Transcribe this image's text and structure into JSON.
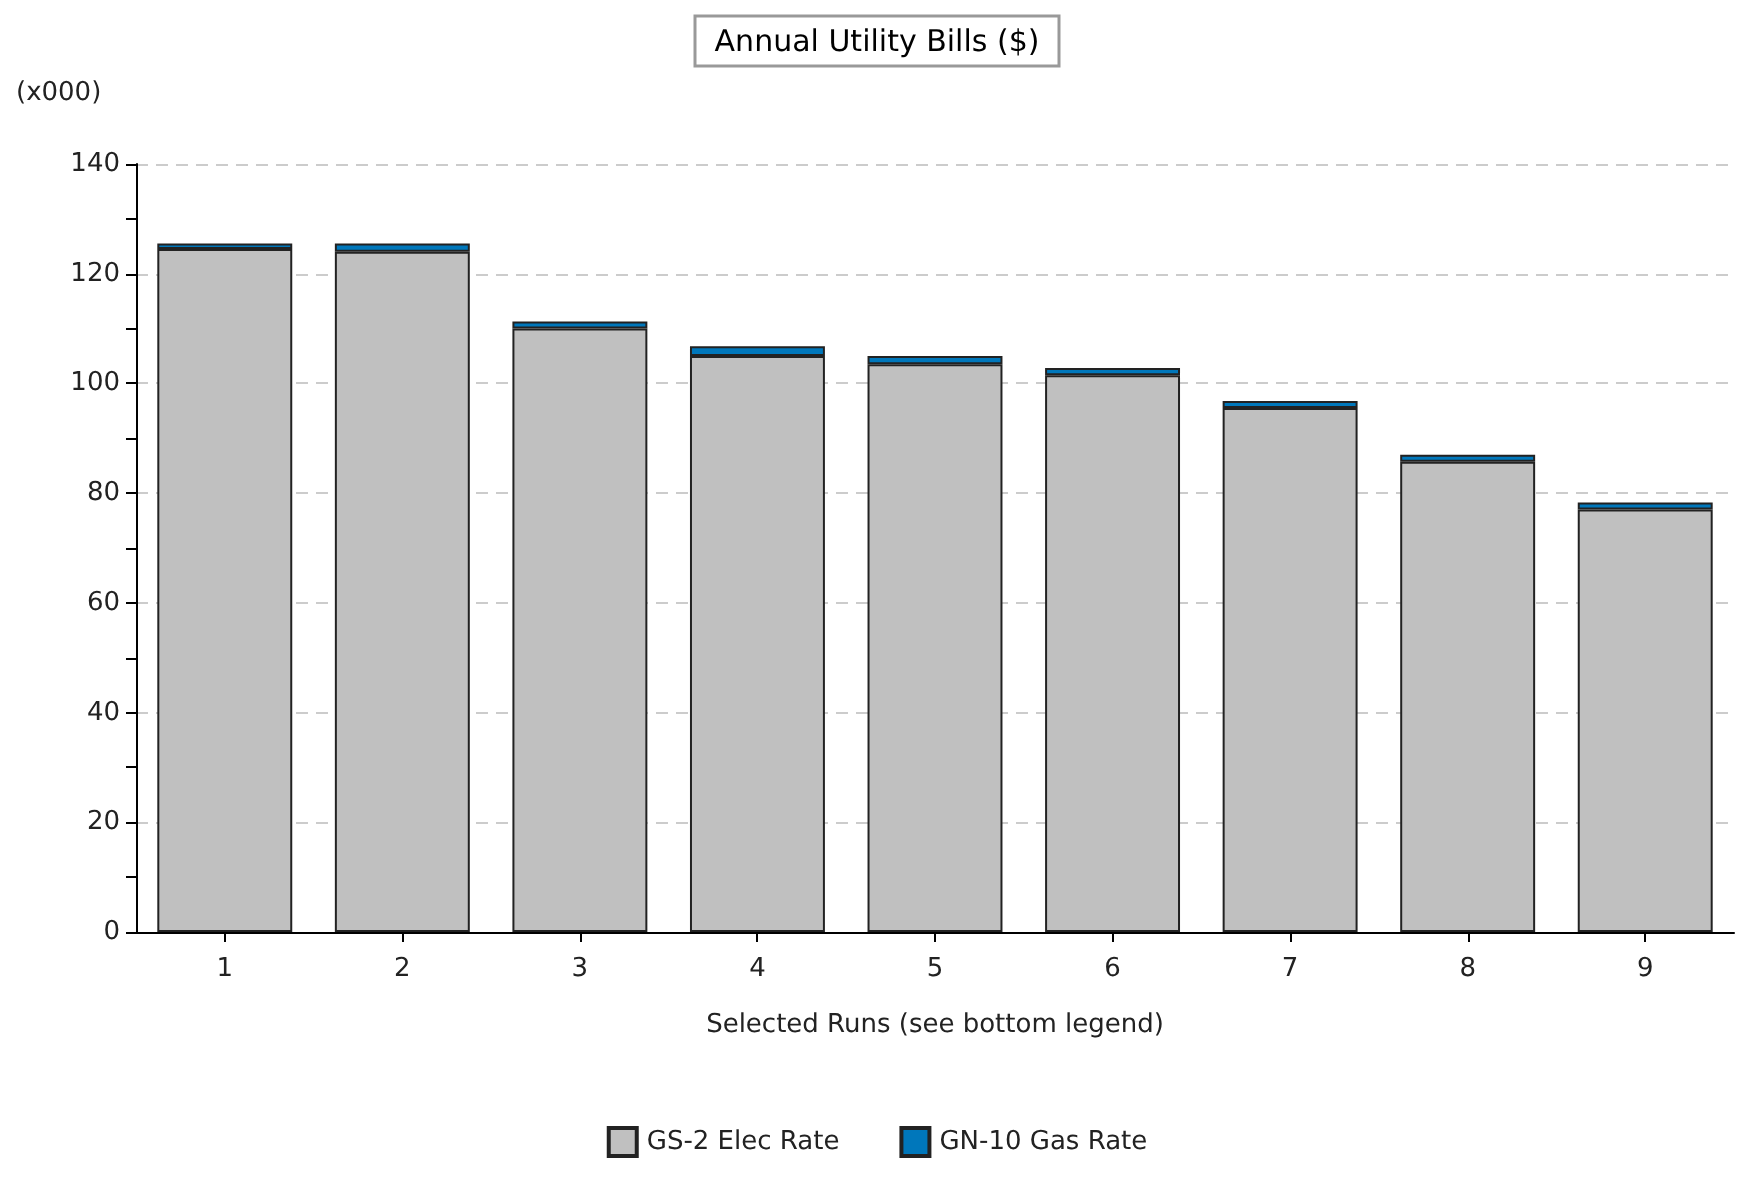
{
  "chart_data": {
    "type": "bar",
    "title": "Annual Utility Bills ($)",
    "ylabel": "(x000)",
    "xlabel": "Selected Runs (see bottom legend)",
    "categories": [
      "1",
      "2",
      "3",
      "4",
      "5",
      "6",
      "7",
      "8",
      "9"
    ],
    "series": [
      {
        "name": "GS-2 Elec Rate",
        "color": "#c0c0c0",
        "values": [
          124.5,
          124,
          110,
          105,
          103.5,
          101.5,
          95.5,
          85.7,
          77
        ]
      },
      {
        "name": "GN-10 Gas Rate",
        "color": "#0077bb",
        "values": [
          1.0,
          1.5,
          1.3,
          1.8,
          1.5,
          1.3,
          1.3,
          1.3,
          1.3
        ]
      }
    ],
    "stacked": true,
    "ylim": [
      0,
      140
    ],
    "yticks": [
      0,
      {
        "value": 10,
        "label": null
      },
      20,
      {
        "value": 30,
        "label": null
      },
      40,
      {
        "value": 50,
        "label": null
      },
      60,
      {
        "value": 70,
        "label": null
      },
      80,
      {
        "value": 90,
        "label": null
      },
      100,
      {
        "value": 110,
        "label": null
      },
      120,
      {
        "value": 130,
        "label": null
      },
      140
    ],
    "grid": "y",
    "legend": "bottom"
  }
}
